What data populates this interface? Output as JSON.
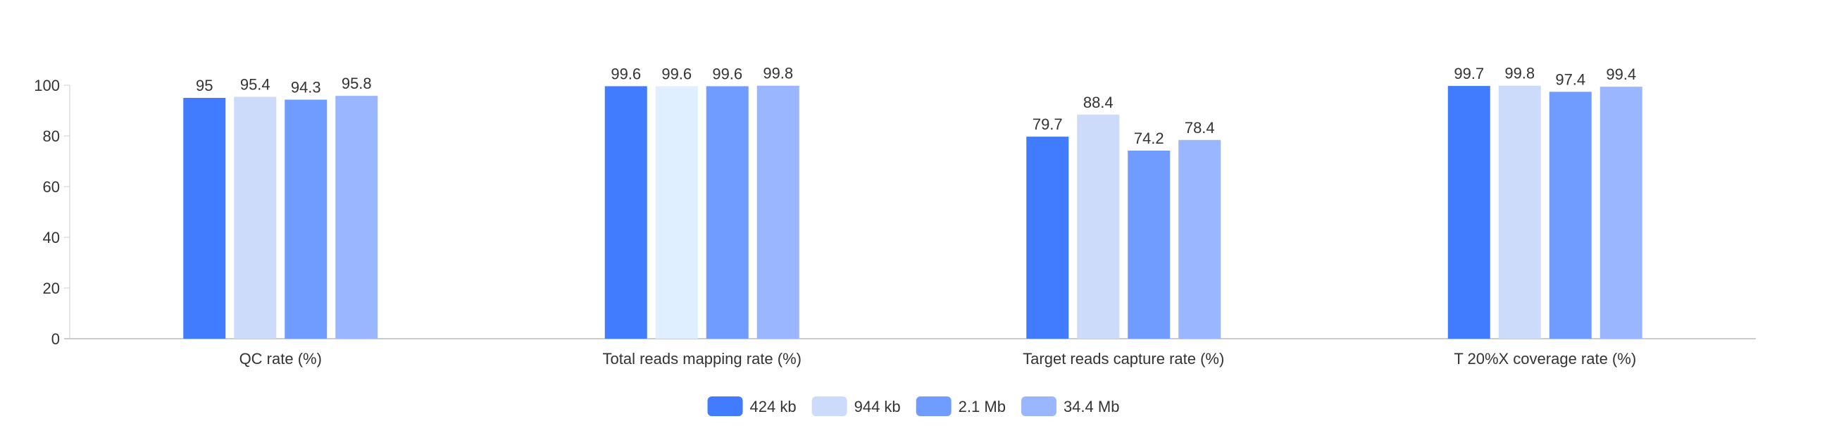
{
  "chart_data": {
    "type": "bar",
    "title": "",
    "xlabel": "",
    "ylabel": "",
    "ylim": [
      0,
      100
    ],
    "yticks": [
      0,
      20,
      40,
      60,
      80,
      100
    ],
    "grid": false,
    "legend_position": "bottom-center",
    "categories": [
      "QC rate (%)",
      "Total reads mapping rate (%)",
      "Target reads capture rate (%)",
      "T 20%X coverage rate (%)"
    ],
    "series": [
      {
        "name": "424 kb",
        "color": "#417CFF",
        "values": [
          95,
          99.6,
          79.7,
          99.7
        ]
      },
      {
        "name": "944 kb",
        "color": "#CCDBF9",
        "values": [
          95.4,
          99.6,
          88.4,
          99.8
        ]
      },
      {
        "name": "2.1 Mb",
        "color": "#719CFF",
        "values": [
          94.3,
          99.6,
          74.2,
          97.4
        ]
      },
      {
        "name": "34.4 Mb",
        "color": "#99B6FF",
        "values": [
          95.8,
          99.8,
          78.4,
          99.4
        ]
      }
    ],
    "highlight_override": {
      "series": 1,
      "category": 1,
      "color": "#E0EFFF"
    }
  }
}
